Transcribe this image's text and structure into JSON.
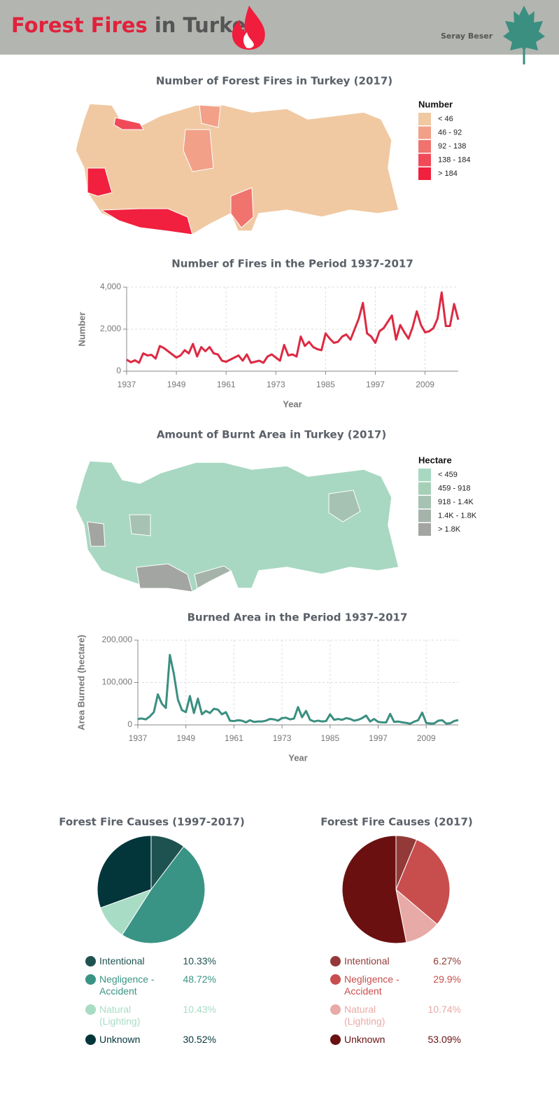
{
  "header": {
    "title_main": "Forest Fires",
    "title_rest": "in Turkey",
    "author": "Seray Beser"
  },
  "chart_data": [
    {
      "type": "map",
      "title": "Number of Forest Fires in Turkey (2017)",
      "legend_title": "Number",
      "legend": [
        {
          "label": "< 46",
          "color": "#f0c9a2"
        },
        {
          "label": "46 - 92",
          "color": "#f2a088"
        },
        {
          "label": "92 - 138",
          "color": "#f0736e"
        },
        {
          "label": "138 - 184",
          "color": "#f04a58"
        },
        {
          "label": "> 184",
          "color": "#f0203e"
        }
      ]
    },
    {
      "type": "line",
      "title": "Number of Fires in the Period 1937-2017",
      "x_label": "Year",
      "y_label": "Number",
      "color": "#dd2a42",
      "xlim": [
        1937,
        2017
      ],
      "xticks": [
        1937,
        1949,
        1961,
        1973,
        1985,
        1997,
        2009
      ],
      "ylim": [
        0,
        4000
      ],
      "yticks": [
        0,
        {
          "value": 2000,
          "label": "2,000"
        },
        {
          "value": 4000,
          "label": "4,000"
        }
      ],
      "grid": true,
      "x": [
        1937,
        1938,
        1939,
        1940,
        1941,
        1942,
        1943,
        1944,
        1945,
        1946,
        1947,
        1948,
        1949,
        1950,
        1951,
        1952,
        1953,
        1954,
        1955,
        1956,
        1957,
        1958,
        1959,
        1960,
        1961,
        1962,
        1963,
        1964,
        1965,
        1966,
        1967,
        1968,
        1969,
        1970,
        1971,
        1972,
        1973,
        1974,
        1975,
        1976,
        1977,
        1978,
        1979,
        1980,
        1981,
        1982,
        1983,
        1984,
        1985,
        1986,
        1987,
        1988,
        1989,
        1990,
        1991,
        1992,
        1993,
        1994,
        1995,
        1996,
        1997,
        1998,
        1999,
        2000,
        2001,
        2002,
        2003,
        2004,
        2005,
        2006,
        2007,
        2008,
        2009,
        2010,
        2011,
        2012,
        2013,
        2014,
        2015,
        2016,
        2017
      ],
      "values": [
        550,
        430,
        520,
        400,
        850,
        750,
        780,
        600,
        1200,
        1100,
        950,
        800,
        650,
        750,
        1000,
        850,
        1300,
        700,
        1150,
        950,
        1150,
        850,
        800,
        500,
        450,
        550,
        650,
        750,
        500,
        800,
        400,
        450,
        500,
        400,
        700,
        800,
        650,
        500,
        1250,
        750,
        800,
        700,
        1650,
        1200,
        1400,
        1150,
        1050,
        1000,
        1800,
        1550,
        1350,
        1400,
        1650,
        1750,
        1500,
        2000,
        2500,
        3250,
        1800,
        1650,
        1350,
        1900,
        2050,
        2350,
        2650,
        1500,
        2200,
        1850,
        1550,
        2100,
        2850,
        2200,
        1850,
        1900,
        2050,
        2500,
        3750,
        2150,
        2150,
        3200,
        2450
      ]
    },
    {
      "type": "map",
      "title": "Amount of Burnt Area in Turkey (2017)",
      "legend_title": "Hectare",
      "legend": [
        {
          "label": "< 459",
          "color": "#a8d8c2"
        },
        {
          "label": "459 - 918",
          "color": "#a6cfb8"
        },
        {
          "label": "918 - 1.4K",
          "color": "#a6c2b2"
        },
        {
          "label": "1.4K - 1.8K",
          "color": "#a5b3aa"
        },
        {
          "label": "> 1.8K",
          "color": "#a3a5a2"
        }
      ]
    },
    {
      "type": "line",
      "title": "Burned Area in the Period 1937-2017",
      "x_label": "Year",
      "y_label": "Area Burned (hectare)",
      "color": "#3a8f80",
      "xlim": [
        1937,
        2017
      ],
      "xticks": [
        1937,
        1949,
        1961,
        1973,
        1985,
        1997,
        2009
      ],
      "ylim": [
        0,
        200000
      ],
      "yticks": [
        0,
        {
          "value": 100000,
          "label": "100,000"
        },
        {
          "value": 200000,
          "label": "200,000"
        }
      ],
      "grid": true,
      "x": [
        1937,
        1938,
        1939,
        1940,
        1941,
        1942,
        1943,
        1944,
        1945,
        1946,
        1947,
        1948,
        1949,
        1950,
        1951,
        1952,
        1953,
        1954,
        1955,
        1956,
        1957,
        1958,
        1959,
        1960,
        1961,
        1962,
        1963,
        1964,
        1965,
        1966,
        1967,
        1968,
        1969,
        1970,
        1971,
        1972,
        1973,
        1974,
        1975,
        1976,
        1977,
        1978,
        1979,
        1980,
        1981,
        1982,
        1983,
        1984,
        1985,
        1986,
        1987,
        1988,
        1989,
        1990,
        1991,
        1992,
        1993,
        1994,
        1995,
        1996,
        1997,
        1998,
        1999,
        2000,
        2001,
        2002,
        2003,
        2004,
        2005,
        2006,
        2007,
        2008,
        2009,
        2010,
        2011,
        2012,
        2013,
        2014,
        2015,
        2016,
        2017
      ],
      "values": [
        14000,
        15000,
        13000,
        20000,
        30000,
        72000,
        50000,
        40000,
        165000,
        120000,
        60000,
        35000,
        30000,
        68000,
        28000,
        62000,
        25000,
        33000,
        28000,
        38000,
        36000,
        25000,
        30000,
        10000,
        9000,
        11000,
        10000,
        6000,
        11000,
        7000,
        8000,
        8000,
        10000,
        14000,
        13000,
        10000,
        16000,
        17000,
        13000,
        15000,
        42000,
        18000,
        33000,
        12000,
        8000,
        10000,
        8000,
        9000,
        25000,
        12000,
        14000,
        12000,
        16000,
        14000,
        10000,
        12000,
        16000,
        22000,
        8000,
        14000,
        7000,
        6000,
        5800,
        26000,
        7000,
        8000,
        6000,
        4800,
        2800,
        7800,
        11000,
        29000,
        4600,
        3300,
        3600,
        10000,
        11000,
        3100,
        3900,
        9200,
        11500
      ]
    },
    {
      "type": "pie",
      "title": "Forest Fire Causes (1997-2017)",
      "categories": [
        "Intentional",
        "Negligence - Accident",
        "Natural (Lighting)",
        "Unknown"
      ],
      "values": [
        10.33,
        48.72,
        10.43,
        30.52
      ],
      "value_labels": [
        "10.33%",
        "48.72%",
        "10.43%",
        "30.52%"
      ],
      "colors": [
        "#1e5250",
        "#3a9485",
        "#a8dcc5",
        "#02363a"
      ]
    },
    {
      "type": "pie",
      "title": "Forest Fire Causes (2017)",
      "categories": [
        "Intentional",
        "Negligence - Accident",
        "Natural (Lighting)",
        "Unknown"
      ],
      "values": [
        6.27,
        29.9,
        10.74,
        53.09
      ],
      "value_labels": [
        "6.27%",
        "29.9%",
        "10.74%",
        "53.09%"
      ],
      "colors": [
        "#933a38",
        "#c84e4e",
        "#e8aaa6",
        "#6a1010"
      ]
    }
  ]
}
